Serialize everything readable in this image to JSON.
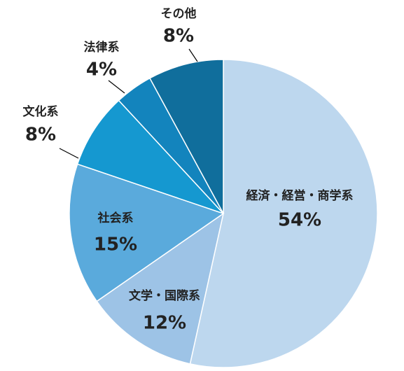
{
  "chart_data": {
    "type": "pie",
    "categories": [
      "経済・経営・商学系",
      "文学・国際系",
      "社会系",
      "文化系",
      "法律系",
      "その他"
    ],
    "values": [
      54,
      12,
      15,
      8,
      4,
      8
    ],
    "value_labels": [
      "54%",
      "12%",
      "15%",
      "8%",
      "4%",
      "8%"
    ],
    "colors": [
      "#bdd7ee",
      "#9dc3e6",
      "#5aaadc",
      "#1598d0",
      "#1384bd",
      "#106e9c"
    ]
  }
}
